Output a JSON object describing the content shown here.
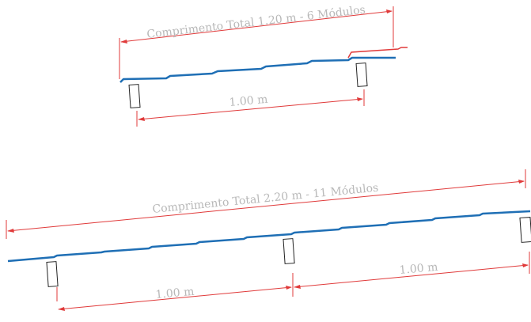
{
  "diagram_top": {
    "total_label": "Comprimento Total 1.20 m - 6 Módulos",
    "span_label": "1.00 m"
  },
  "diagram_bottom": {
    "total_label": "Comprimento Total 2.20 m - 11 Módulos",
    "span_label_left": "1.00 m",
    "span_label_right": "1.00 m"
  },
  "colors": {
    "tile": "#1f6fb5",
    "dimension": "#e03a3a",
    "label": "#b8b8b8",
    "support_outline": "#222222"
  }
}
